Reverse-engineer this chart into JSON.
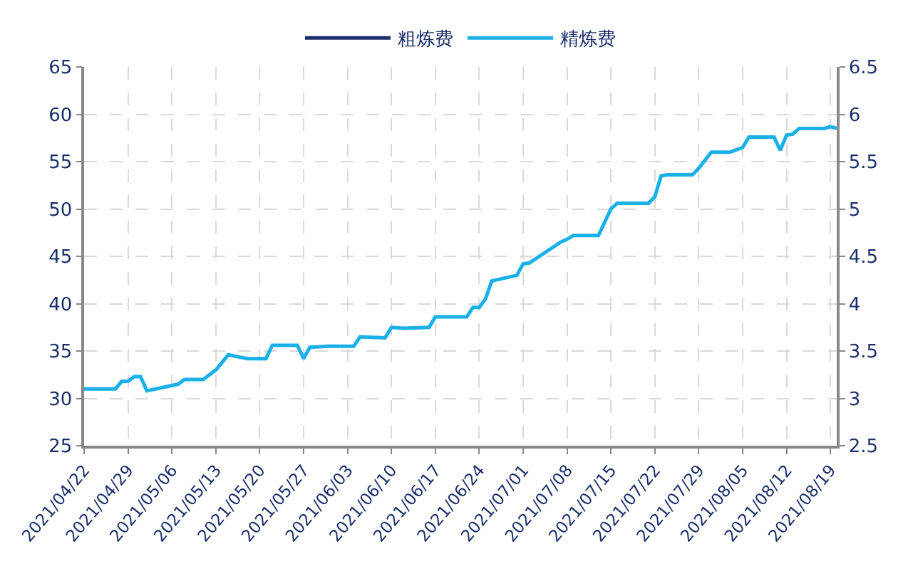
{
  "chart_data": {
    "type": "line",
    "legend": "top",
    "grid": true,
    "marker": "none",
    "line_style": "solid",
    "x": [
      "2021-04-22",
      "2021-04-27",
      "2021-04-28",
      "2021-04-29",
      "2021-04-30",
      "2021-05-01",
      "2021-05-02",
      "2021-05-07",
      "2021-05-08",
      "2021-05-11",
      "2021-05-13",
      "2021-05-15",
      "2021-05-18",
      "2021-05-21",
      "2021-05-22",
      "2021-05-26",
      "2021-05-27",
      "2021-05-28",
      "2021-05-31",
      "2021-06-04",
      "2021-06-05",
      "2021-06-09",
      "2021-06-10",
      "2021-06-12",
      "2021-06-16",
      "2021-06-17",
      "2021-06-22",
      "2021-06-23",
      "2021-06-24",
      "2021-06-25",
      "2021-06-26",
      "2021-06-30",
      "2021-07-01",
      "2021-07-02",
      "2021-07-07",
      "2021-07-08",
      "2021-07-09",
      "2021-07-13",
      "2021-07-15",
      "2021-07-16",
      "2021-07-21",
      "2021-07-22",
      "2021-07-23",
      "2021-07-24",
      "2021-07-28",
      "2021-07-29",
      "2021-07-31",
      "2021-08-03",
      "2021-08-05",
      "2021-08-06",
      "2021-08-10",
      "2021-08-11",
      "2021-08-12",
      "2021-08-13",
      "2021-08-14",
      "2021-08-18",
      "2021-08-19",
      "2021-08-20"
    ],
    "series": [
      {
        "name": "粗炼费",
        "color": "#1a2f6b",
        "values": [
          null,
          null,
          null,
          null,
          null,
          null,
          null,
          null,
          null,
          null,
          null,
          null,
          null,
          null,
          null,
          null,
          null,
          null,
          null,
          null,
          null,
          null,
          null,
          null,
          null,
          null,
          null,
          null,
          null,
          null,
          null,
          null,
          null,
          null,
          null,
          null,
          null,
          null,
          null,
          null,
          null,
          null,
          null,
          null,
          null,
          null,
          null,
          null,
          null,
          null,
          null,
          null,
          null,
          null,
          null,
          null,
          null,
          null
        ]
      },
      {
        "name": "精炼费",
        "color": "#1ab0e8",
        "axis": "y2",
        "values": [
          3.1,
          3.1,
          3.18,
          3.18,
          3.23,
          3.23,
          3.08,
          3.15,
          3.2,
          3.2,
          3.3,
          3.46,
          3.42,
          3.42,
          3.56,
          3.56,
          3.42,
          3.54,
          3.55,
          3.55,
          3.65,
          3.64,
          3.75,
          3.74,
          3.75,
          3.86,
          3.86,
          3.96,
          3.96,
          4.05,
          4.24,
          4.3,
          4.42,
          4.43,
          4.65,
          4.68,
          4.72,
          4.72,
          5.0,
          5.06,
          5.06,
          5.13,
          5.35,
          5.36,
          5.36,
          5.43,
          5.6,
          5.6,
          5.65,
          5.76,
          5.76,
          5.62,
          5.78,
          5.79,
          5.85,
          5.85,
          5.87,
          5.85
        ]
      }
    ],
    "xlim": [
      "2021-04-22",
      "2021-08-20"
    ],
    "xticks": [
      {
        "value": "2021-04-22",
        "label": "2021/04/22"
      },
      {
        "value": "2021-04-29",
        "label": "2021/04/29"
      },
      {
        "value": "2021-05-06",
        "label": "2021/05/06"
      },
      {
        "value": "2021-05-13",
        "label": "2021/05/13"
      },
      {
        "value": "2021-05-20",
        "label": "2021/05/20"
      },
      {
        "value": "2021-05-27",
        "label": "2021/05/27"
      },
      {
        "value": "2021-06-03",
        "label": "2021/06/03"
      },
      {
        "value": "2021-06-10",
        "label": "2021/06/10"
      },
      {
        "value": "2021-06-17",
        "label": "2021/06/17"
      },
      {
        "value": "2021-06-24",
        "label": "2021/06/24"
      },
      {
        "value": "2021-07-01",
        "label": "2021/07/01"
      },
      {
        "value": "2021-07-08",
        "label": "2021/07/08"
      },
      {
        "value": "2021-07-15",
        "label": "2021/07/15"
      },
      {
        "value": "2021-07-22",
        "label": "2021/07/22"
      },
      {
        "value": "2021-07-29",
        "label": "2021/07/29"
      },
      {
        "value": "2021-08-05",
        "label": "2021/08/05"
      },
      {
        "value": "2021-08-12",
        "label": "2021/08/12"
      },
      {
        "value": "2021-08-19",
        "label": "2021/08/19"
      }
    ],
    "ylim": [
      25,
      65
    ],
    "yticks": [
      25,
      30,
      35,
      40,
      45,
      50,
      55,
      60,
      65
    ],
    "y2lim": [
      2.5,
      6.5
    ],
    "y2ticks": [
      2.5,
      3,
      3.5,
      4,
      4.5,
      5,
      5.5,
      6,
      6.5
    ]
  }
}
